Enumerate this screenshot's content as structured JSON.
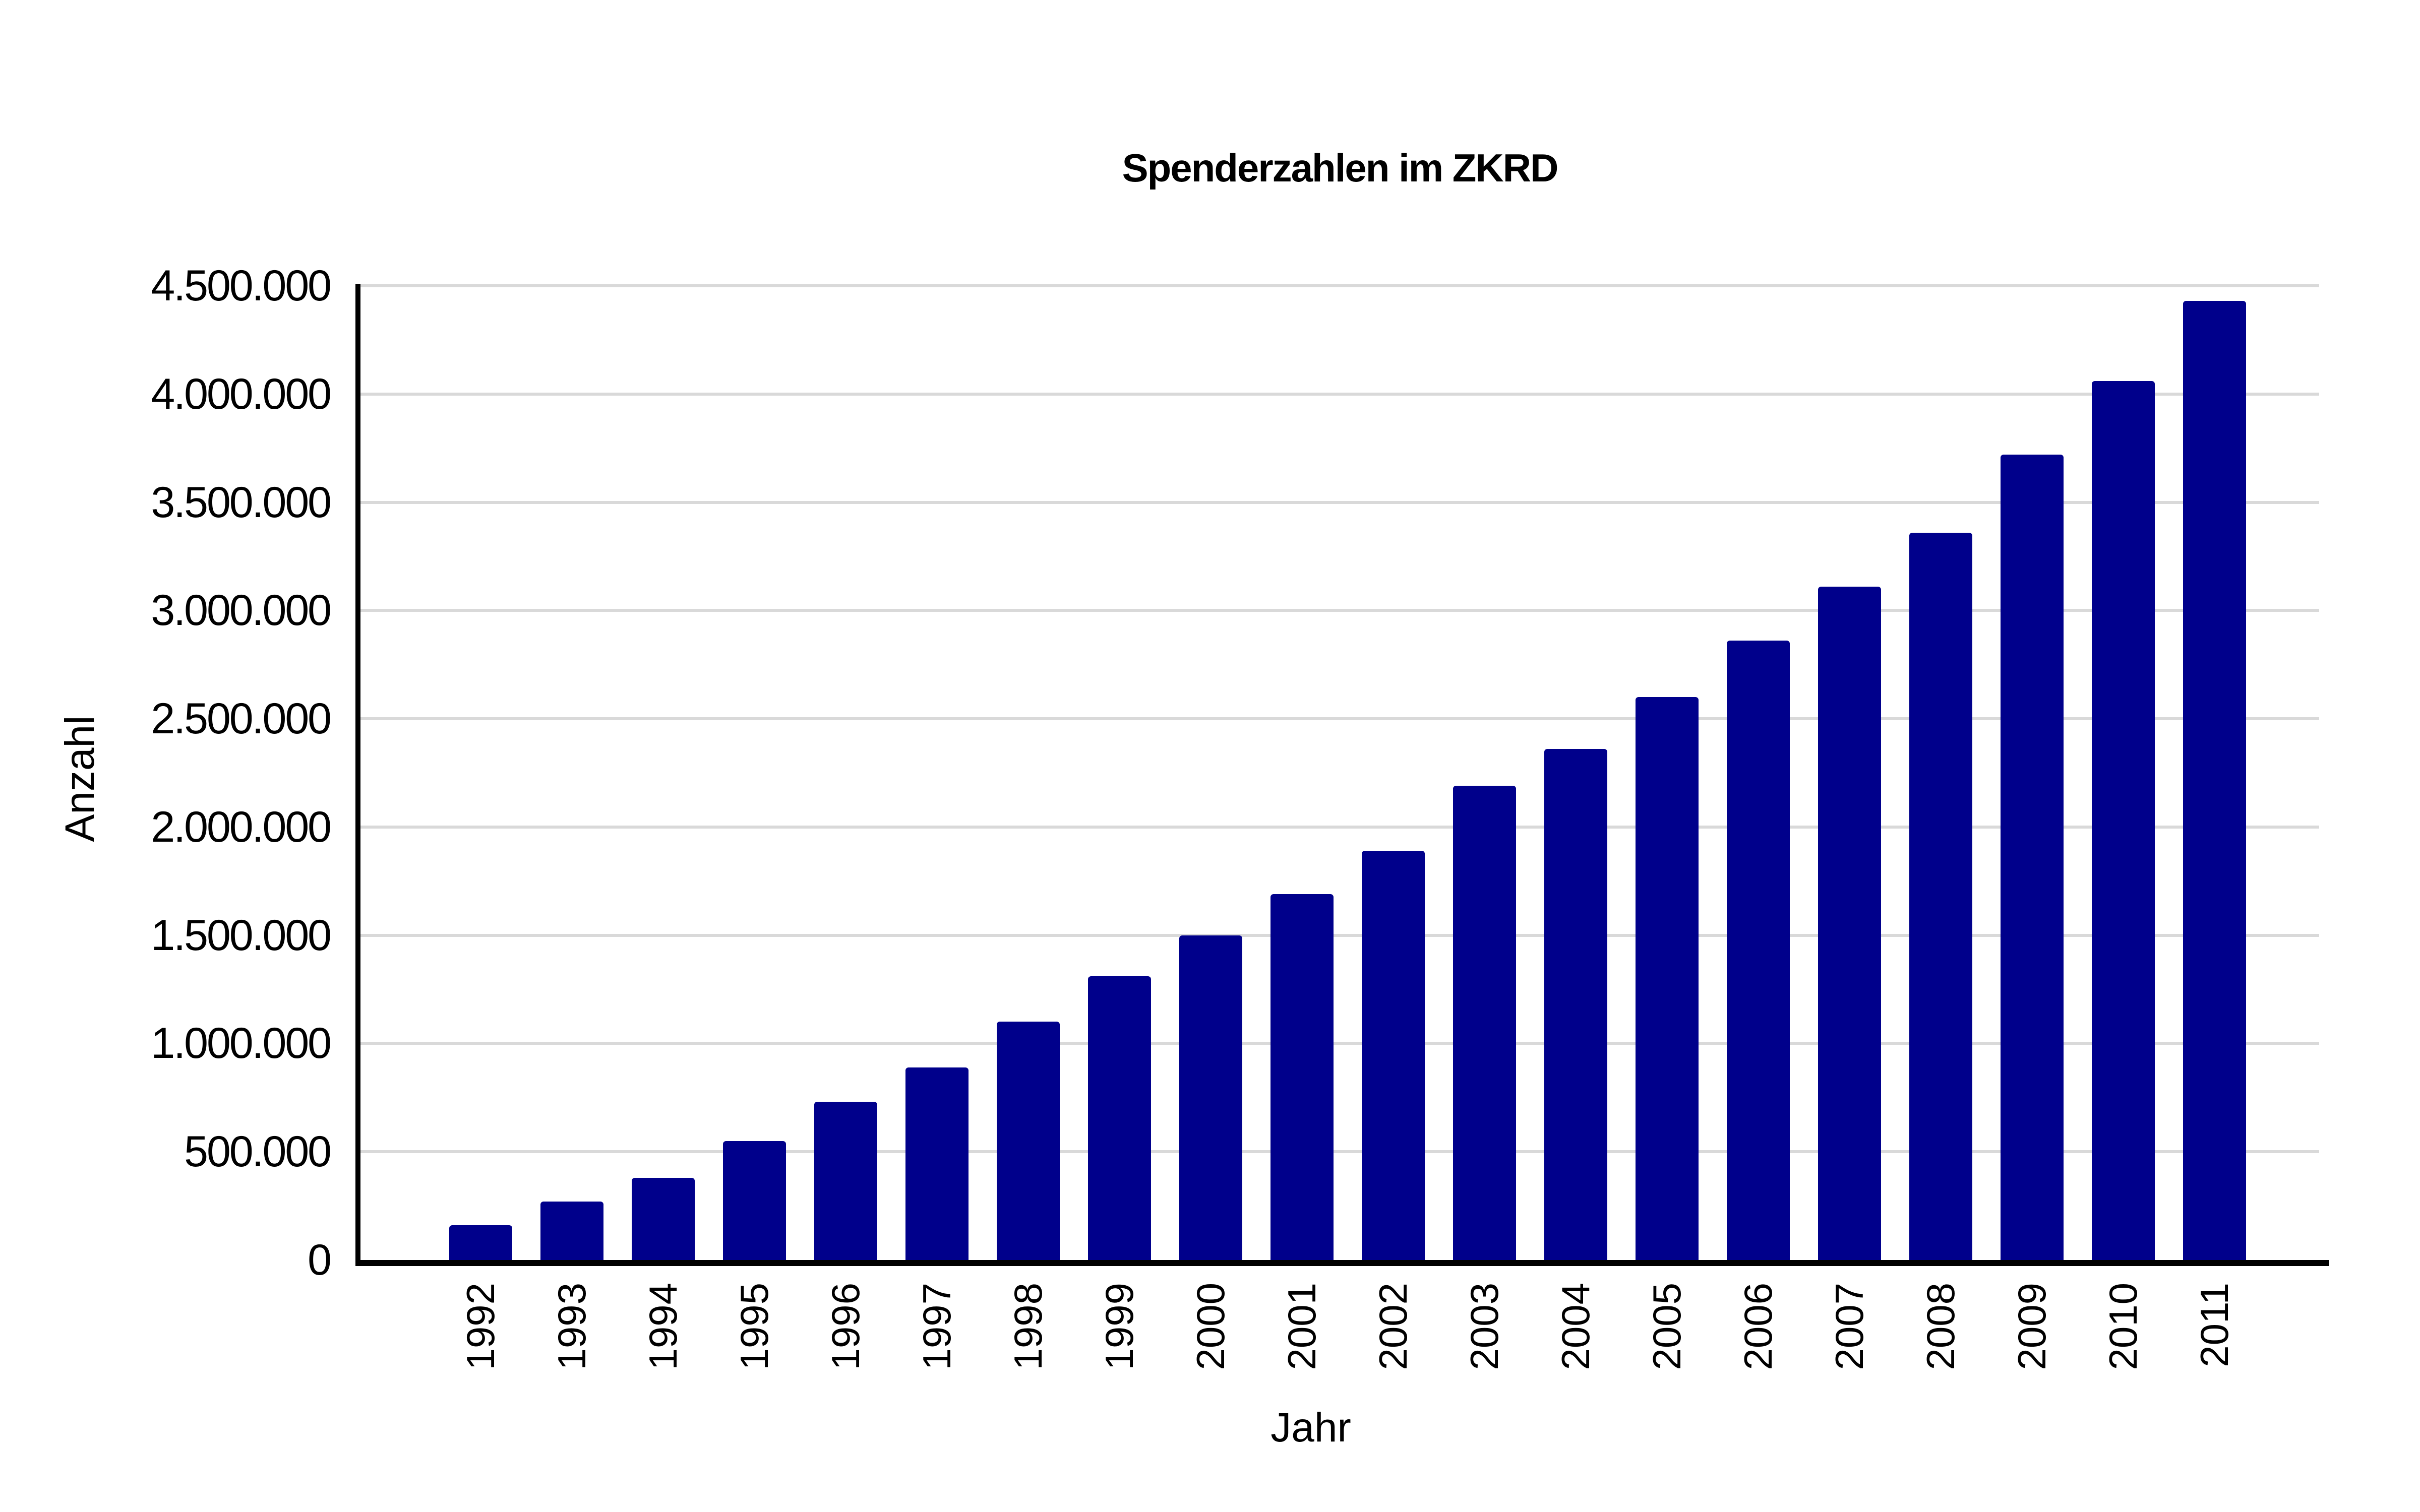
{
  "chart_data": {
    "type": "bar",
    "title": "Spenderzahlen im ZKRD",
    "xlabel": "Jahr",
    "ylabel": "Anzahl",
    "categories": [
      "1992",
      "1993",
      "1994",
      "1995",
      "1996",
      "1997",
      "1998",
      "1999",
      "2000",
      "2001",
      "2002",
      "2003",
      "2004",
      "2005",
      "2006",
      "2007",
      "2008",
      "2009",
      "2010",
      "2011"
    ],
    "values": [
      160000,
      270000,
      380000,
      550000,
      730000,
      890000,
      1100000,
      1310000,
      1500000,
      1690000,
      1890000,
      2190000,
      2360000,
      2600000,
      2860000,
      3110000,
      3360000,
      3720000,
      4060000,
      4430000
    ],
    "ylim": [
      0,
      4500000
    ],
    "ytick_step": 500000,
    "ytick_labels": [
      "0",
      "500.000",
      "1.000.000",
      "1.500.000",
      "2.000.000",
      "2.500.000",
      "3.000.000",
      "3.500.000",
      "4.000.000",
      "4.500.000"
    ],
    "grid": "horizontal",
    "legend": "none",
    "bar_color": "#00008B",
    "gridline_color": "#D9D9D9",
    "axis_color": "#000000",
    "background": "#FFFFFF"
  }
}
